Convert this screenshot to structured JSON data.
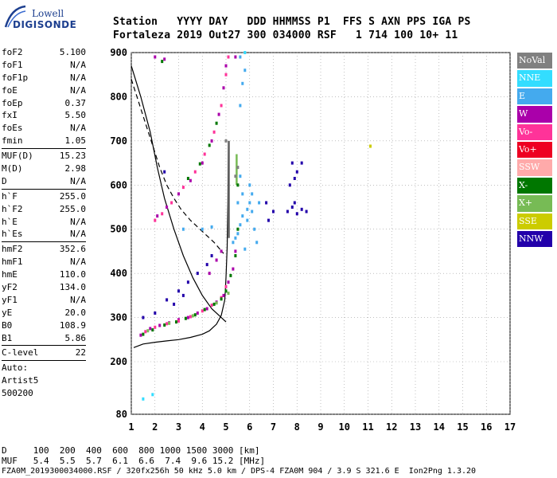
{
  "logo": {
    "line1": "Lowell",
    "line2": "DIGISONDE"
  },
  "header": {
    "line1": "Station   YYYY DAY   DDD HHMMSS P1  FFS S AXN PPS IGA PS",
    "line2": "Fortaleza 2019 Out27 300 034000 RSF   1 714 100 10+ 11"
  },
  "params": {
    "group1": [
      {
        "k": "foF2",
        "v": "5.100"
      },
      {
        "k": "foF1",
        "v": "N/A"
      },
      {
        "k": "foF1p",
        "v": "N/A"
      },
      {
        "k": "foE",
        "v": "N/A"
      },
      {
        "k": "foEp",
        "v": "0.37"
      },
      {
        "k": "fxI",
        "v": "5.50"
      },
      {
        "k": "foEs",
        "v": "N/A"
      },
      {
        "k": "fmin",
        "v": "1.05"
      }
    ],
    "group2": [
      {
        "k": "MUF(D)",
        "v": "15.23"
      },
      {
        "k": "M(D)",
        "v": "2.98"
      },
      {
        "k": "D",
        "v": "N/A"
      }
    ],
    "group3": [
      {
        "k": "h`F",
        "v": "255.0"
      },
      {
        "k": "h`F2",
        "v": "255.0"
      },
      {
        "k": "h`E",
        "v": "N/A"
      },
      {
        "k": "h`Es",
        "v": "N/A"
      }
    ],
    "group4": [
      {
        "k": "hmF2",
        "v": "352.6"
      },
      {
        "k": "hmF1",
        "v": "N/A"
      },
      {
        "k": "hmE",
        "v": "110.0"
      },
      {
        "k": "yF2",
        "v": "134.0"
      },
      {
        "k": "yF1",
        "v": "N/A"
      },
      {
        "k": "yE",
        "v": "20.0"
      },
      {
        "k": "B0",
        "v": "108.9"
      },
      {
        "k": "B1",
        "v": "5.86"
      }
    ],
    "group5": [
      {
        "k": "C-level",
        "v": "22"
      }
    ],
    "notes": [
      "Auto:",
      "Artist5",
      "500200"
    ]
  },
  "legend": [
    {
      "label": "NoVal",
      "color": "#808080"
    },
    {
      "label": "NNE",
      "color": "#33ddff"
    },
    {
      "label": "E",
      "color": "#44aaee"
    },
    {
      "label": "W",
      "color": "#aa00aa"
    },
    {
      "label": "Vo-",
      "color": "#ff3399"
    },
    {
      "label": "Vo+",
      "color": "#ee0022"
    },
    {
      "label": "SSW",
      "color": "#ffaaaa"
    },
    {
      "label": "X-",
      "color": "#007700"
    },
    {
      "label": "X+",
      "color": "#77bb55"
    },
    {
      "label": "SSE",
      "color": "#cccc00"
    },
    {
      "label": "NNW",
      "color": "#2200aa"
    }
  ],
  "footer": {
    "line1": "D     100  200  400  600  800 1000 1500 3000 [km]",
    "line2": "MUF   5.4  5.5  5.7  6.1  6.6  7.4  9.6 15.2 [MHz]",
    "line3": "FZA0M_2019300034000.RSF / 320fx256h 50 kHz 5.0 km / DPS-4 FZA0M 904 / 3.9 S 321.6 E  Ion2Png 1.3.20"
  },
  "chart_data": {
    "type": "scatter",
    "xlabel": "",
    "ylabel": "",
    "xlim": [
      1,
      17
    ],
    "ylim": [
      80,
      900
    ],
    "xticks": [
      1,
      2,
      3,
      4,
      5,
      6,
      7,
      8,
      9,
      10,
      11,
      12,
      13,
      14,
      15,
      16,
      17
    ],
    "yticks": [
      80,
      200,
      300,
      400,
      500,
      600,
      700,
      800,
      900
    ],
    "grid": true,
    "series": [
      {
        "name": "W",
        "color": "#aa00aa",
        "points": [
          [
            1.4,
            260
          ],
          [
            1.8,
            275
          ],
          [
            2.2,
            282
          ],
          [
            2.6,
            288
          ],
          [
            3.0,
            295
          ],
          [
            3.4,
            300
          ],
          [
            3.8,
            310
          ],
          [
            4.2,
            320
          ],
          [
            4.6,
            335
          ],
          [
            4.9,
            350
          ],
          [
            5.1,
            380
          ],
          [
            5.3,
            410
          ],
          [
            5.4,
            450
          ],
          [
            2.1,
            530
          ],
          [
            2.5,
            550
          ],
          [
            3.0,
            580
          ],
          [
            3.5,
            610
          ],
          [
            4.0,
            650
          ],
          [
            4.4,
            700
          ],
          [
            4.7,
            760
          ],
          [
            4.9,
            820
          ],
          [
            5.0,
            870
          ],
          [
            2.0,
            890
          ],
          [
            2.4,
            885
          ],
          [
            5.4,
            890
          ],
          [
            4.3,
            400
          ],
          [
            4.6,
            430
          ],
          [
            4.8,
            450
          ]
        ]
      },
      {
        "name": "Vo-",
        "color": "#ff3399",
        "points": [
          [
            1.6,
            268
          ],
          [
            2.0,
            278
          ],
          [
            2.5,
            286
          ],
          [
            3.0,
            292
          ],
          [
            3.5,
            302
          ],
          [
            4.0,
            315
          ],
          [
            4.4,
            328
          ],
          [
            4.8,
            345
          ],
          [
            5.0,
            370
          ],
          [
            2.0,
            520
          ],
          [
            2.3,
            535
          ],
          [
            2.7,
            560
          ],
          [
            3.2,
            595
          ],
          [
            3.7,
            630
          ],
          [
            4.1,
            670
          ],
          [
            4.5,
            720
          ],
          [
            4.8,
            780
          ],
          [
            5.0,
            850
          ],
          [
            5.1,
            890
          ]
        ]
      },
      {
        "name": "X-",
        "color": "#007700",
        "points": [
          [
            1.5,
            262
          ],
          [
            1.9,
            272
          ],
          [
            2.4,
            283
          ],
          [
            2.9,
            290
          ],
          [
            3.3,
            298
          ],
          [
            3.7,
            306
          ],
          [
            4.1,
            318
          ],
          [
            4.5,
            330
          ],
          [
            4.8,
            342
          ],
          [
            5.0,
            360
          ],
          [
            5.2,
            395
          ],
          [
            5.4,
            440
          ],
          [
            3.4,
            615
          ],
          [
            3.9,
            648
          ],
          [
            4.3,
            690
          ],
          [
            4.6,
            740
          ],
          [
            2.3,
            880
          ],
          [
            5.5,
            600
          ],
          [
            5.5,
            500
          ]
        ]
      },
      {
        "name": "X+",
        "color": "#77bb55",
        "points": [
          [
            1.7,
            270
          ],
          [
            2.6,
            287
          ],
          [
            3.6,
            304
          ],
          [
            4.6,
            333
          ],
          [
            5.1,
            355
          ]
        ]
      },
      {
        "name": "E",
        "color": "#44aaee",
        "points": [
          [
            5.3,
            470
          ],
          [
            5.5,
            490
          ],
          [
            5.6,
            510
          ],
          [
            5.7,
            530
          ],
          [
            5.9,
            545
          ],
          [
            6.0,
            560
          ],
          [
            6.1,
            580
          ],
          [
            6.2,
            500
          ],
          [
            6.3,
            470
          ],
          [
            5.8,
            455
          ],
          [
            6.0,
            600
          ],
          [
            5.6,
            620
          ],
          [
            4.0,
            500
          ],
          [
            4.4,
            505
          ],
          [
            3.2,
            500
          ],
          [
            5.6,
            780
          ],
          [
            5.7,
            830
          ],
          [
            5.8,
            860
          ],
          [
            5.6,
            890
          ],
          [
            5.4,
            480
          ],
          [
            5.9,
            520
          ],
          [
            6.1,
            540
          ],
          [
            6.4,
            560
          ],
          [
            5.5,
            560
          ],
          [
            5.7,
            580
          ]
        ]
      },
      {
        "name": "NNE",
        "color": "#33ddff",
        "points": [
          [
            1.5,
            115
          ],
          [
            1.9,
            125
          ],
          [
            5.8,
            900
          ]
        ]
      },
      {
        "name": "NNW",
        "color": "#2200aa",
        "points": [
          [
            7.6,
            540
          ],
          [
            7.8,
            550
          ],
          [
            8.0,
            535
          ],
          [
            8.2,
            545
          ],
          [
            8.4,
            540
          ],
          [
            7.9,
            560
          ],
          [
            7.7,
            600
          ],
          [
            7.9,
            615
          ],
          [
            8.0,
            630
          ],
          [
            8.2,
            650
          ],
          [
            7.8,
            650
          ],
          [
            6.8,
            520
          ],
          [
            7.0,
            540
          ],
          [
            6.7,
            560
          ],
          [
            2.4,
            630
          ],
          [
            1.5,
            300
          ],
          [
            2.0,
            310
          ],
          [
            2.5,
            340
          ],
          [
            3.0,
            360
          ],
          [
            3.4,
            380
          ],
          [
            3.8,
            400
          ],
          [
            4.2,
            420
          ],
          [
            4.4,
            440
          ],
          [
            2.8,
            330
          ],
          [
            3.2,
            350
          ]
        ]
      },
      {
        "name": "SSE",
        "color": "#cccc00",
        "points": [
          [
            11.1,
            688
          ]
        ]
      },
      {
        "name": "NoVal",
        "color": "#808080",
        "points": [
          [
            5.4,
            620
          ],
          [
            5.5,
            640
          ],
          [
            5.0,
            700
          ]
        ]
      }
    ],
    "lines": [
      {
        "label": "",
        "color": "#000000",
        "dash": false,
        "points": [
          [
            1.1,
            232
          ],
          [
            1.5,
            240
          ],
          [
            2.0,
            244
          ],
          [
            2.5,
            247
          ],
          [
            3.0,
            250
          ],
          [
            3.5,
            255
          ],
          [
            4.0,
            262
          ],
          [
            4.3,
            270
          ],
          [
            4.6,
            285
          ],
          [
            4.8,
            305
          ],
          [
            4.95,
            340
          ],
          [
            5.0,
            390
          ],
          [
            5.05,
            460
          ],
          [
            5.08,
            560
          ],
          [
            5.1,
            700
          ]
        ]
      },
      {
        "label": "",
        "color": "#000000",
        "dash": true,
        "points": [
          [
            1.0,
            840
          ],
          [
            1.3,
            790
          ],
          [
            1.6,
            740
          ],
          [
            1.9,
            690
          ],
          [
            2.2,
            640
          ],
          [
            2.5,
            600
          ],
          [
            2.8,
            570
          ],
          [
            3.1,
            545
          ],
          [
            3.5,
            520
          ],
          [
            4.0,
            495
          ],
          [
            4.5,
            470
          ],
          [
            4.9,
            445
          ]
        ]
      },
      {
        "label": "",
        "color": "#000000",
        "dash": false,
        "points": [
          [
            1.0,
            870
          ],
          [
            1.4,
            800
          ],
          [
            1.8,
            720
          ],
          [
            2.1,
            640
          ],
          [
            2.4,
            570
          ],
          [
            2.8,
            500
          ],
          [
            3.2,
            440
          ],
          [
            3.6,
            390
          ],
          [
            4.0,
            350
          ],
          [
            4.4,
            320
          ],
          [
            4.8,
            300
          ],
          [
            5.0,
            290
          ]
        ]
      }
    ],
    "bars": [
      {
        "x": 5.45,
        "ylim": [
          600,
          670
        ],
        "color": "#77bb55"
      },
      {
        "x": 5.12,
        "ylim": [
          480,
          700
        ],
        "color": "#666666"
      }
    ]
  }
}
